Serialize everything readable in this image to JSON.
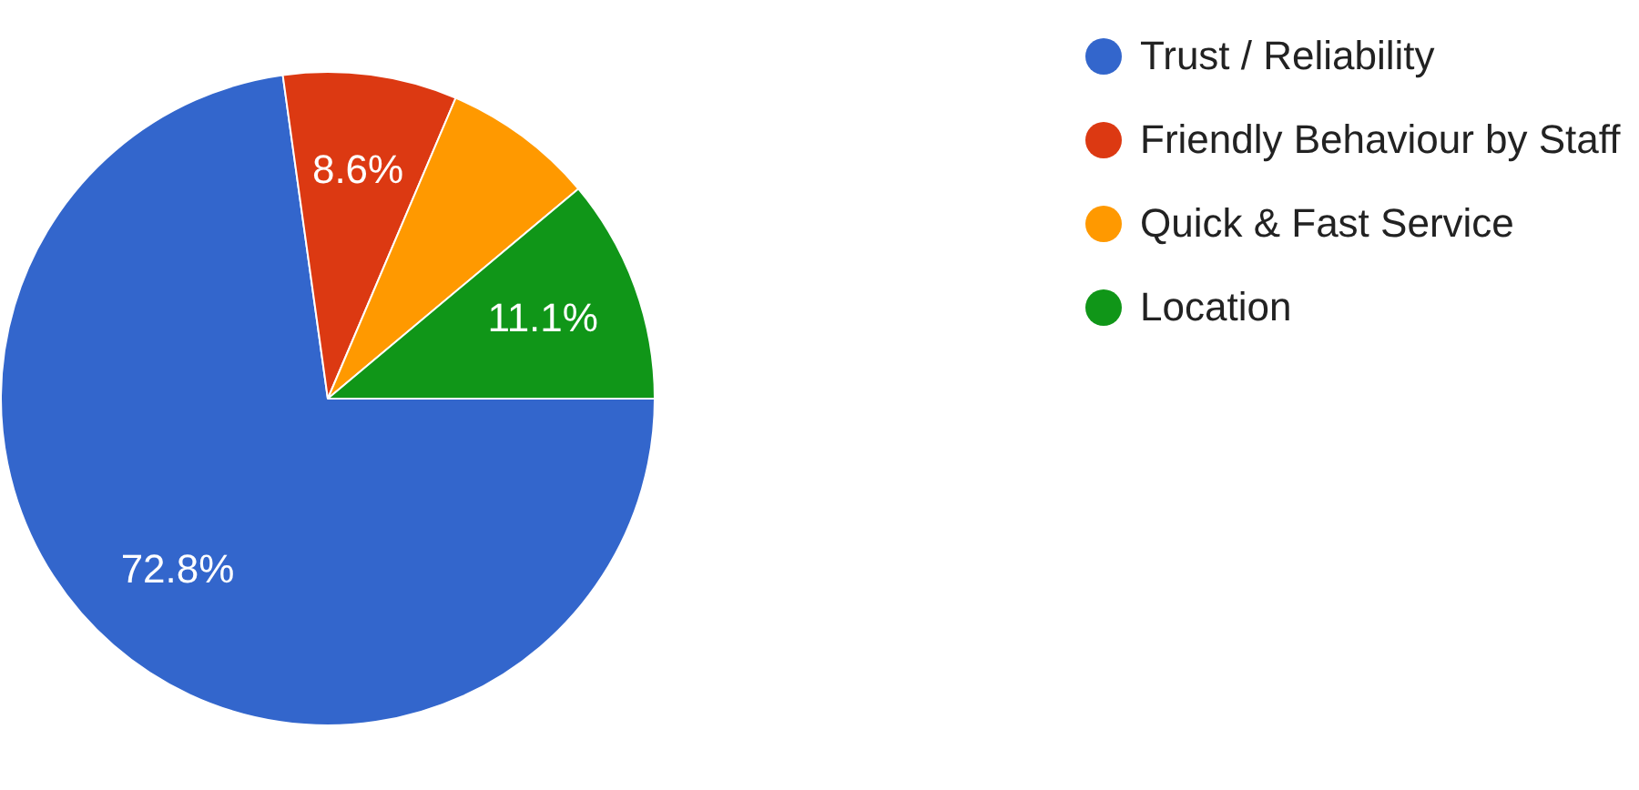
{
  "chart_data": {
    "type": "pie",
    "categories": [
      "Trust / Reliability",
      "Friendly Behaviour by Staff",
      "Quick & Fast Service",
      "Location"
    ],
    "values": [
      72.8,
      8.6,
      7.5,
      11.1
    ],
    "colors": [
      "#3366cc",
      "#dc3912",
      "#ff9900",
      "#109618"
    ],
    "value_labels": [
      "72.8%",
      "8.6%",
      null,
      "11.1%"
    ],
    "legend": "top right"
  }
}
